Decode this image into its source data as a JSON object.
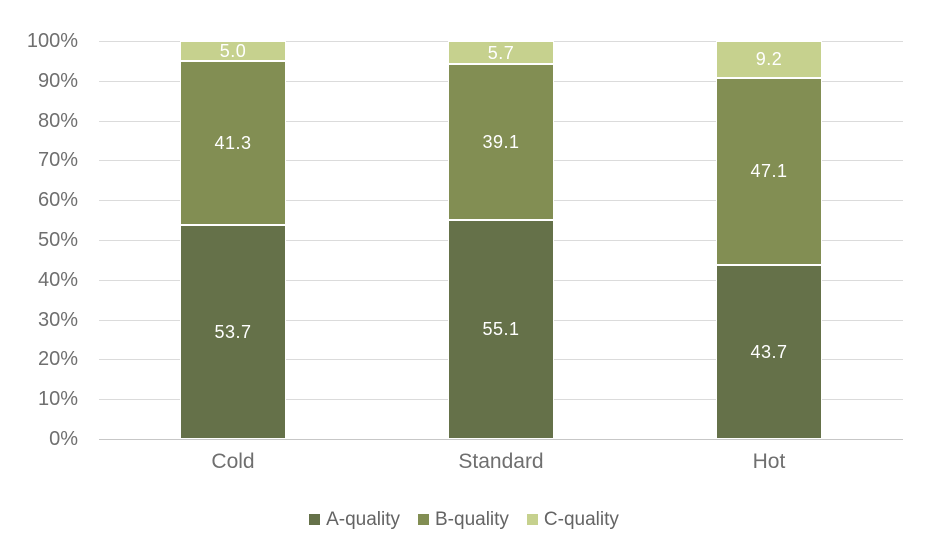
{
  "chart_data": {
    "type": "bar",
    "subtype": "100%-stacked-column",
    "title": "",
    "xlabel": "",
    "ylabel": "",
    "categories": [
      "Cold",
      "Standard",
      "Hot"
    ],
    "series": [
      {
        "name": "A-quality",
        "values": [
          53.7,
          55.1,
          43.7
        ],
        "color": "#657149"
      },
      {
        "name": "B-quality",
        "values": [
          41.3,
          39.1,
          47.1
        ],
        "color": "#828e53"
      },
      {
        "name": "C-quality",
        "values": [
          5.0,
          5.7,
          9.2
        ],
        "color": "#c6d18e"
      }
    ],
    "data_labels": [
      [
        "53.7",
        "55.1",
        "43.7"
      ],
      [
        "41.3",
        "39.1",
        "47.1"
      ],
      [
        "5.0",
        "5.7",
        "9.2"
      ]
    ],
    "data_label_color": "#ffffff",
    "segment_border_color": "#ffffff",
    "ylim": [
      0,
      100
    ],
    "ytick_labels": [
      "100%",
      "90%",
      "80%",
      "70%",
      "60%",
      "50%",
      "40%",
      "30%",
      "20%",
      "10%",
      "0%"
    ],
    "grid": "horizontal",
    "gridline_color": "#dbdbdb",
    "axis_line_color": "#c7c7c7",
    "axis_text_color": "#6f6f6f",
    "legend_position": "bottom",
    "legend_labels": [
      "A-quality",
      "B-quality",
      "C-quality"
    ],
    "background_color": "#ffffff"
  }
}
